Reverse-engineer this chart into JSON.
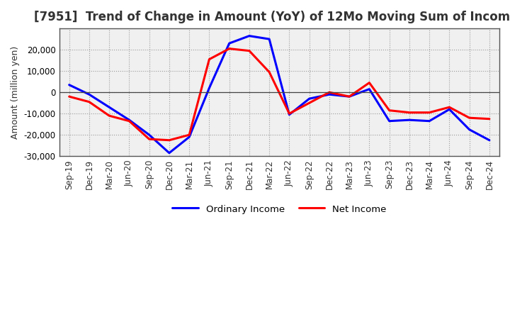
{
  "title": "[7951]  Trend of Change in Amount (YoY) of 12Mo Moving Sum of Incomes",
  "ylabel": "Amount (million yen)",
  "x_labels": [
    "Sep-19",
    "Dec-19",
    "Mar-20",
    "Jun-20",
    "Sep-20",
    "Dec-20",
    "Mar-21",
    "Jun-21",
    "Sep-21",
    "Dec-21",
    "Mar-22",
    "Jun-22",
    "Sep-22",
    "Dec-22",
    "Mar-23",
    "Jun-23",
    "Sep-23",
    "Dec-23",
    "Mar-24",
    "Jun-24",
    "Sep-24",
    "Dec-24"
  ],
  "ordinary_income": [
    3500,
    -1000,
    -7000,
    -13000,
    -20000,
    -28500,
    -21000,
    2000,
    23000,
    26500,
    25000,
    -10500,
    -3000,
    -1000,
    -2000,
    1500,
    -13500,
    -13000,
    -13500,
    -8000,
    -17500,
    -22500
  ],
  "net_income": [
    -2000,
    -4500,
    -11000,
    -13500,
    -22000,
    -22500,
    -20000,
    15500,
    20500,
    19500,
    9500,
    -10000,
    -5000,
    0,
    -2000,
    4500,
    -8500,
    -9500,
    -9500,
    -7000,
    -12000,
    -12500
  ],
  "ordinary_color": "#0000ff",
  "net_color": "#ff0000",
  "background_color": "#ffffff",
  "plot_bg_color": "#f0f0f0",
  "grid_color": "#999999",
  "ylim": [
    -30000,
    30000
  ],
  "yticks": [
    -30000,
    -20000,
    -10000,
    0,
    10000,
    20000
  ],
  "legend_ordinary": "Ordinary Income",
  "legend_net": "Net Income",
  "title_fontsize": 12,
  "axis_label_fontsize": 9,
  "tick_fontsize": 8.5
}
